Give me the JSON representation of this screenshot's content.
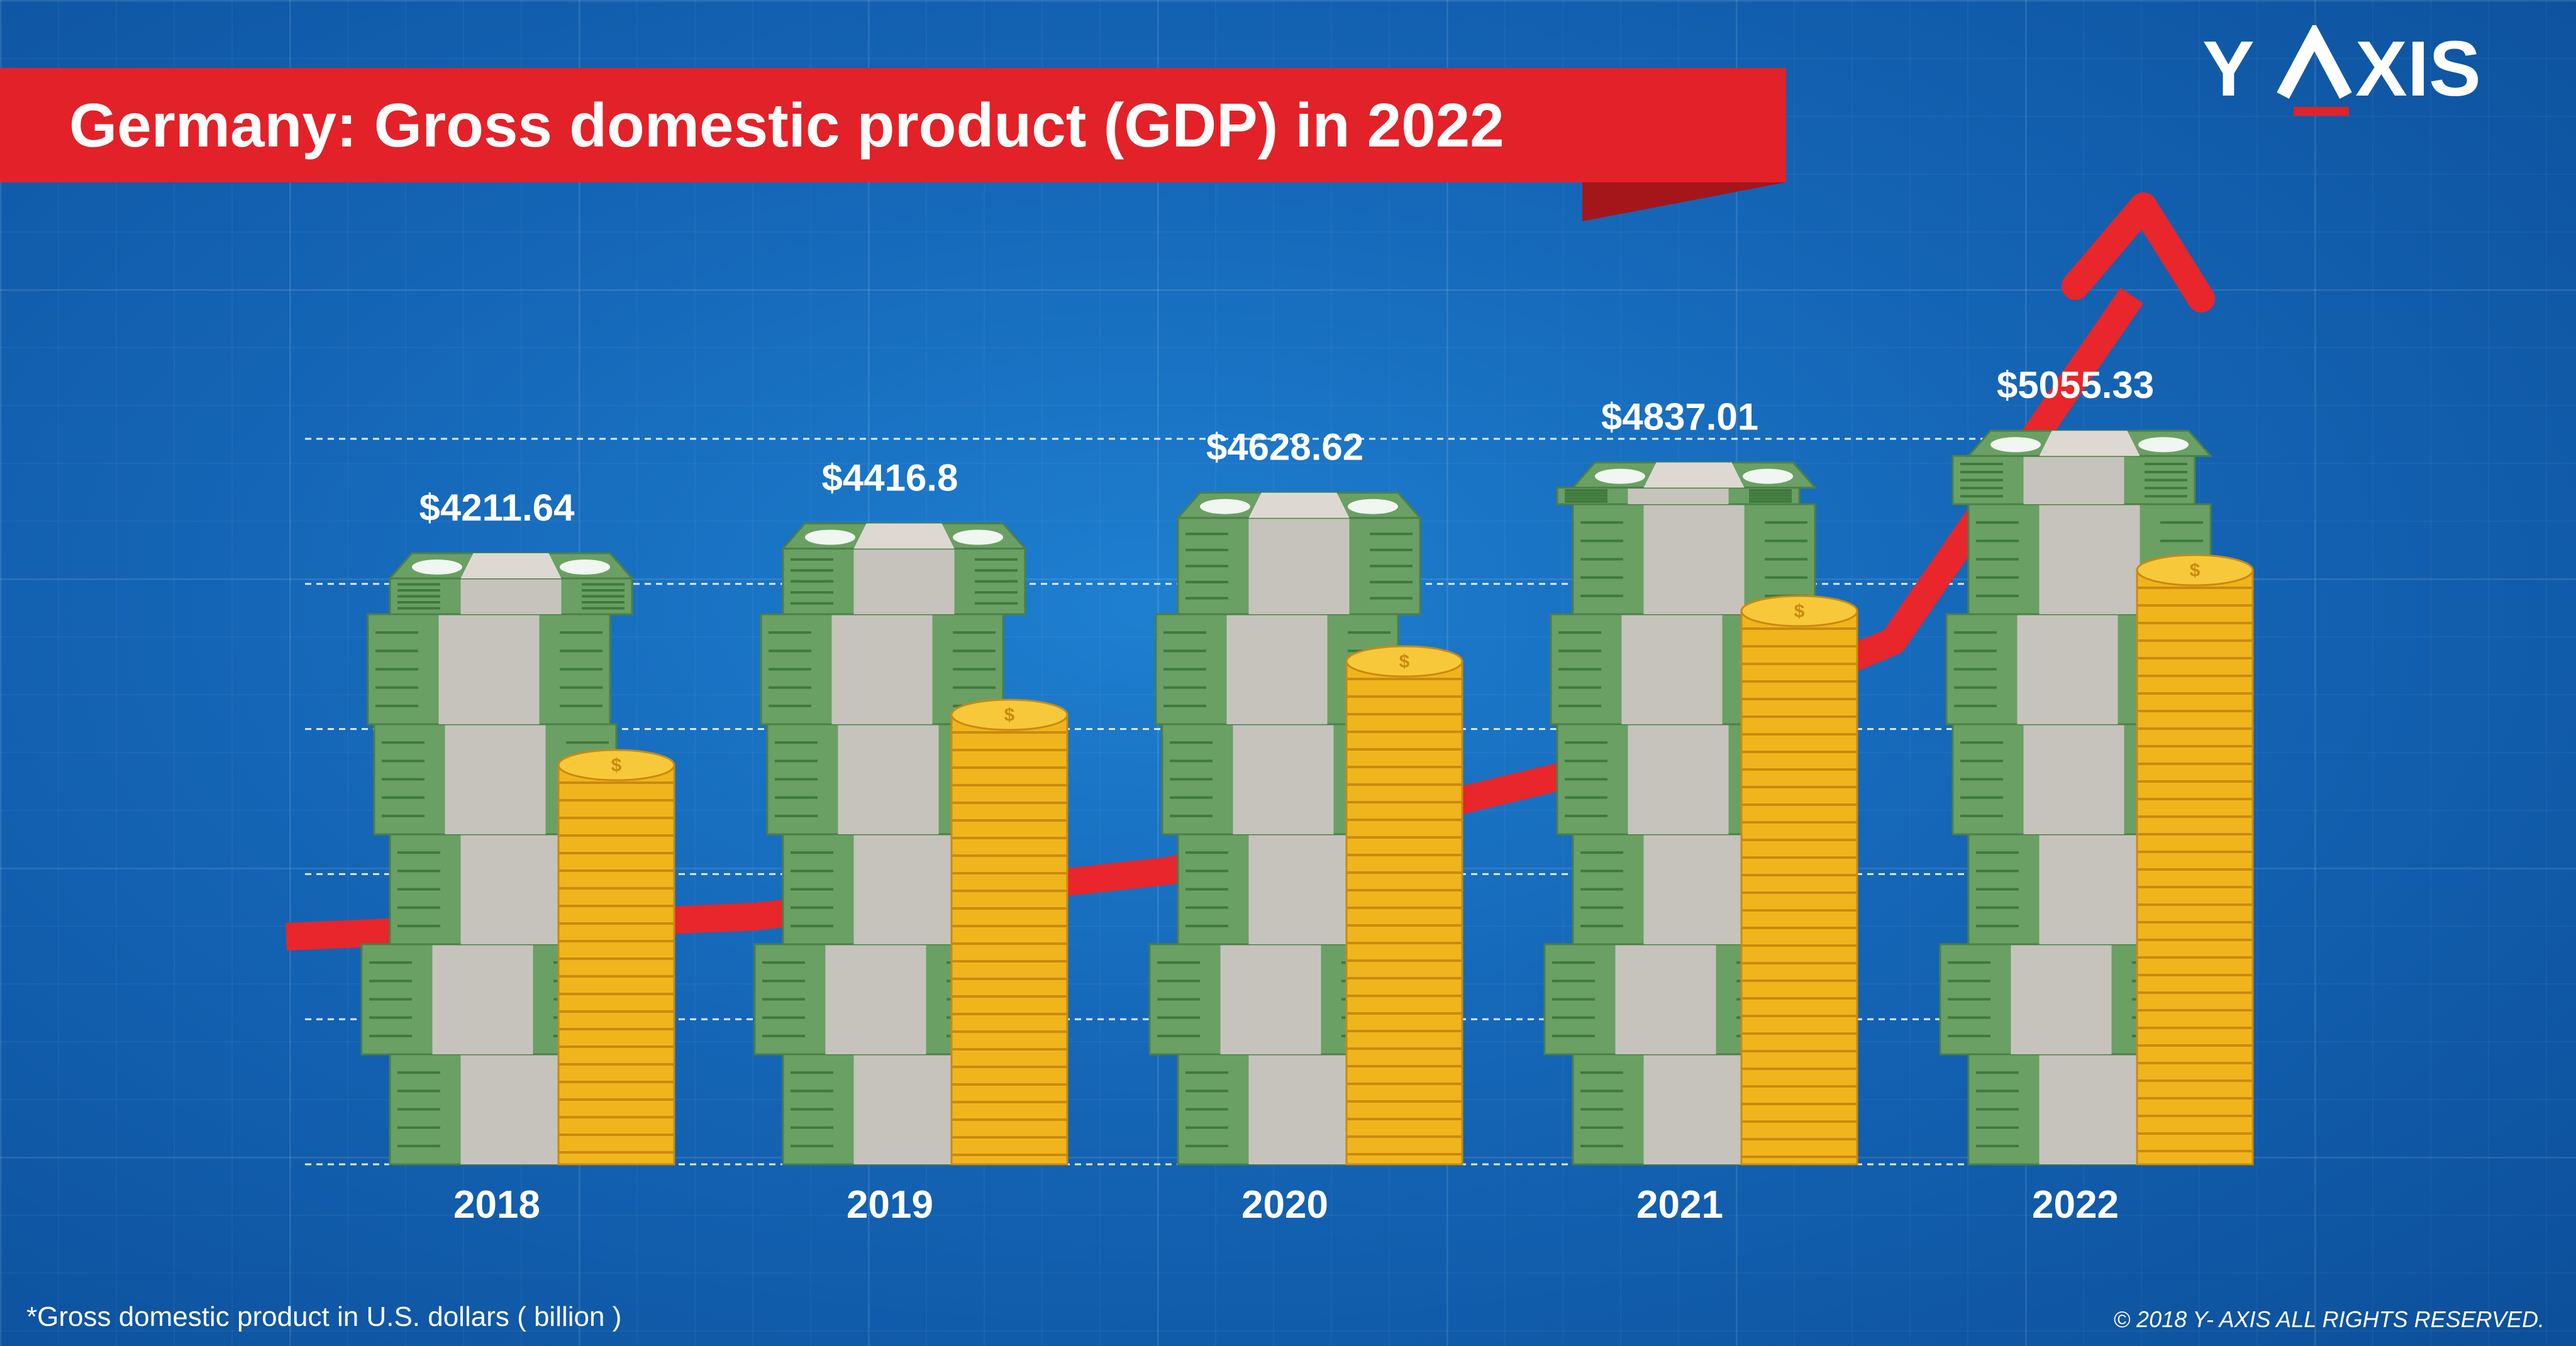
{
  "title": "Germany: Gross domestic product (GDP) in 2022",
  "brand": {
    "left": "Y",
    "right": "XIS"
  },
  "footnote": "*Gross domestic product in U.S. dollars ( billion )",
  "copyright": "© 2018 Y- AXIS  ALL RIGHTS RESERVED.",
  "colors": {
    "background": "#1566b7",
    "banner": "#e32128",
    "trend": "#e8262b",
    "cash": "#6aa064",
    "band": "#c6c3bd",
    "coin": "#f0b51c",
    "text": "#ffffff"
  },
  "chart_data": {
    "type": "bar",
    "title": "Germany: Gross domestic product (GDP) in 2022",
    "categories": [
      "2018",
      "2019",
      "2020",
      "2021",
      "2022"
    ],
    "values": [
      4211.64,
      4416.8,
      4628.62,
      4837.01,
      5055.33
    ],
    "value_labels": [
      "$4211.64",
      "$4416.8",
      "$4628.62",
      "$4837.01",
      "$5055.33"
    ],
    "ylabel": "Gross domestic product in U.S. dollars ( billion )",
    "ylim": [
      0,
      5000
    ],
    "gridlines": [
      0,
      1000,
      2000,
      3000,
      4000,
      5000
    ],
    "trend_line": true,
    "legend": "none"
  }
}
